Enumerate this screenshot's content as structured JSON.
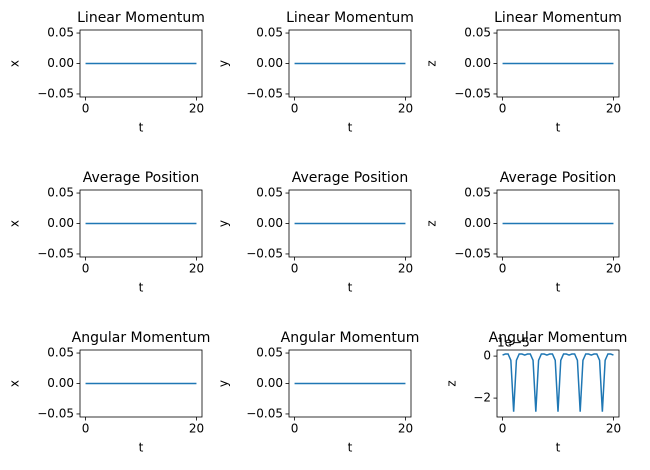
{
  "chart_data": [
    {
      "type": "line",
      "title": "Linear Momentum",
      "xlabel": "t",
      "ylabel": "x",
      "x": [
        0,
        20
      ],
      "values": [
        0,
        0
      ],
      "color": "#1f77b4",
      "xlim": [
        -1,
        21
      ],
      "ylim": [
        -0.055,
        0.055
      ],
      "xticks": [
        0,
        20
      ],
      "yticks": [
        {
          "value": -0.05,
          "label": "−0.05"
        },
        {
          "value": 0,
          "label": "0.00"
        },
        {
          "value": 0.05,
          "label": "0.05"
        }
      ]
    },
    {
      "type": "line",
      "title": "Linear Momentum",
      "xlabel": "t",
      "ylabel": "y",
      "x": [
        0,
        20
      ],
      "values": [
        0,
        0
      ],
      "color": "#1f77b4",
      "xlim": [
        -1,
        21
      ],
      "ylim": [
        -0.055,
        0.055
      ],
      "xticks": [
        0,
        20
      ],
      "yticks": [
        {
          "value": -0.05,
          "label": "−0.05"
        },
        {
          "value": 0,
          "label": "0.00"
        },
        {
          "value": 0.05,
          "label": "0.05"
        }
      ]
    },
    {
      "type": "line",
      "title": "Linear Momentum",
      "xlabel": "t",
      "ylabel": "z",
      "x": [
        0,
        20
      ],
      "values": [
        0,
        0
      ],
      "color": "#1f77b4",
      "xlim": [
        -1,
        21
      ],
      "ylim": [
        -0.055,
        0.055
      ],
      "xticks": [
        0,
        20
      ],
      "yticks": [
        {
          "value": -0.05,
          "label": "−0.05"
        },
        {
          "value": 0,
          "label": "0.00"
        },
        {
          "value": 0.05,
          "label": "0.05"
        }
      ]
    },
    {
      "type": "line",
      "title": "Average Position",
      "xlabel": "t",
      "ylabel": "x",
      "x": [
        0,
        20
      ],
      "values": [
        0,
        0
      ],
      "color": "#1f77b4",
      "xlim": [
        -1,
        21
      ],
      "ylim": [
        -0.055,
        0.055
      ],
      "xticks": [
        0,
        20
      ],
      "yticks": [
        {
          "value": -0.05,
          "label": "−0.05"
        },
        {
          "value": 0,
          "label": "0.00"
        },
        {
          "value": 0.05,
          "label": "0.05"
        }
      ]
    },
    {
      "type": "line",
      "title": "Average Position",
      "xlabel": "t",
      "ylabel": "y",
      "x": [
        0,
        20
      ],
      "values": [
        0,
        0
      ],
      "color": "#1f77b4",
      "xlim": [
        -1,
        21
      ],
      "ylim": [
        -0.055,
        0.055
      ],
      "xticks": [
        0,
        20
      ],
      "yticks": [
        {
          "value": -0.05,
          "label": "−0.05"
        },
        {
          "value": 0,
          "label": "0.00"
        },
        {
          "value": 0.05,
          "label": "0.05"
        }
      ]
    },
    {
      "type": "line",
      "title": "Average Position",
      "xlabel": "t",
      "ylabel": "z",
      "x": [
        0,
        20
      ],
      "values": [
        0,
        0
      ],
      "color": "#1f77b4",
      "xlim": [
        -1,
        21
      ],
      "ylim": [
        -0.055,
        0.055
      ],
      "xticks": [
        0,
        20
      ],
      "yticks": [
        {
          "value": -0.05,
          "label": "−0.05"
        },
        {
          "value": 0,
          "label": "0.00"
        },
        {
          "value": 0.05,
          "label": "0.05"
        }
      ]
    },
    {
      "type": "line",
      "title": "Angular Momentum",
      "xlabel": "t",
      "ylabel": "x",
      "x": [
        0,
        20
      ],
      "values": [
        0,
        0
      ],
      "color": "#1f77b4",
      "xlim": [
        -1,
        21
      ],
      "ylim": [
        -0.055,
        0.055
      ],
      "xticks": [
        0,
        20
      ],
      "yticks": [
        {
          "value": -0.05,
          "label": "−0.05"
        },
        {
          "value": 0,
          "label": "0.00"
        },
        {
          "value": 0.05,
          "label": "0.05"
        }
      ]
    },
    {
      "type": "line",
      "title": "Angular Momentum",
      "xlabel": "t",
      "ylabel": "y",
      "x": [
        0,
        20
      ],
      "values": [
        0,
        0
      ],
      "color": "#1f77b4",
      "xlim": [
        -1,
        21
      ],
      "ylim": [
        -0.055,
        0.055
      ],
      "xticks": [
        0,
        20
      ],
      "yticks": [
        {
          "value": -0.05,
          "label": "−0.05"
        },
        {
          "value": 0,
          "label": "0.00"
        },
        {
          "value": 0.05,
          "label": "0.05"
        }
      ]
    },
    {
      "type": "line",
      "title": "Angular Momentum",
      "xlabel": "t",
      "ylabel": "z",
      "y_offset_label": "1e−5",
      "x": [
        0,
        0.5,
        1,
        1.5,
        2,
        2.5,
        3,
        3.5,
        4,
        4.5,
        5,
        5.5,
        6,
        6.5,
        7,
        7.5,
        8,
        8.5,
        9,
        9.5,
        10,
        10.5,
        11,
        11.5,
        12,
        12.5,
        13,
        13.5,
        14,
        14.5,
        15,
        15.5,
        16,
        16.5,
        17,
        17.5,
        18,
        18.5,
        19,
        19.5,
        20
      ],
      "values": [
        0.05,
        0.1,
        0.1,
        -0.2,
        -2.65,
        -0.2,
        0.1,
        0.1,
        0.05,
        0.1,
        0.1,
        -0.2,
        -2.65,
        -0.2,
        0.1,
        0.1,
        0.05,
        0.1,
        0.1,
        -0.2,
        -2.65,
        -0.2,
        0.1,
        0.1,
        0.05,
        0.1,
        0.1,
        -0.2,
        -2.65,
        -0.2,
        0.1,
        0.1,
        0.05,
        0.1,
        0.1,
        -0.2,
        -2.65,
        -0.2,
        0.1,
        0.1,
        0.05
      ],
      "color": "#1f77b4",
      "xlim": [
        -1,
        21
      ],
      "ylim": [
        -2.9,
        0.29
      ],
      "xticks": [
        0,
        20
      ],
      "yticks": [
        {
          "value": -2,
          "label": "−2"
        },
        0
      ]
    }
  ]
}
